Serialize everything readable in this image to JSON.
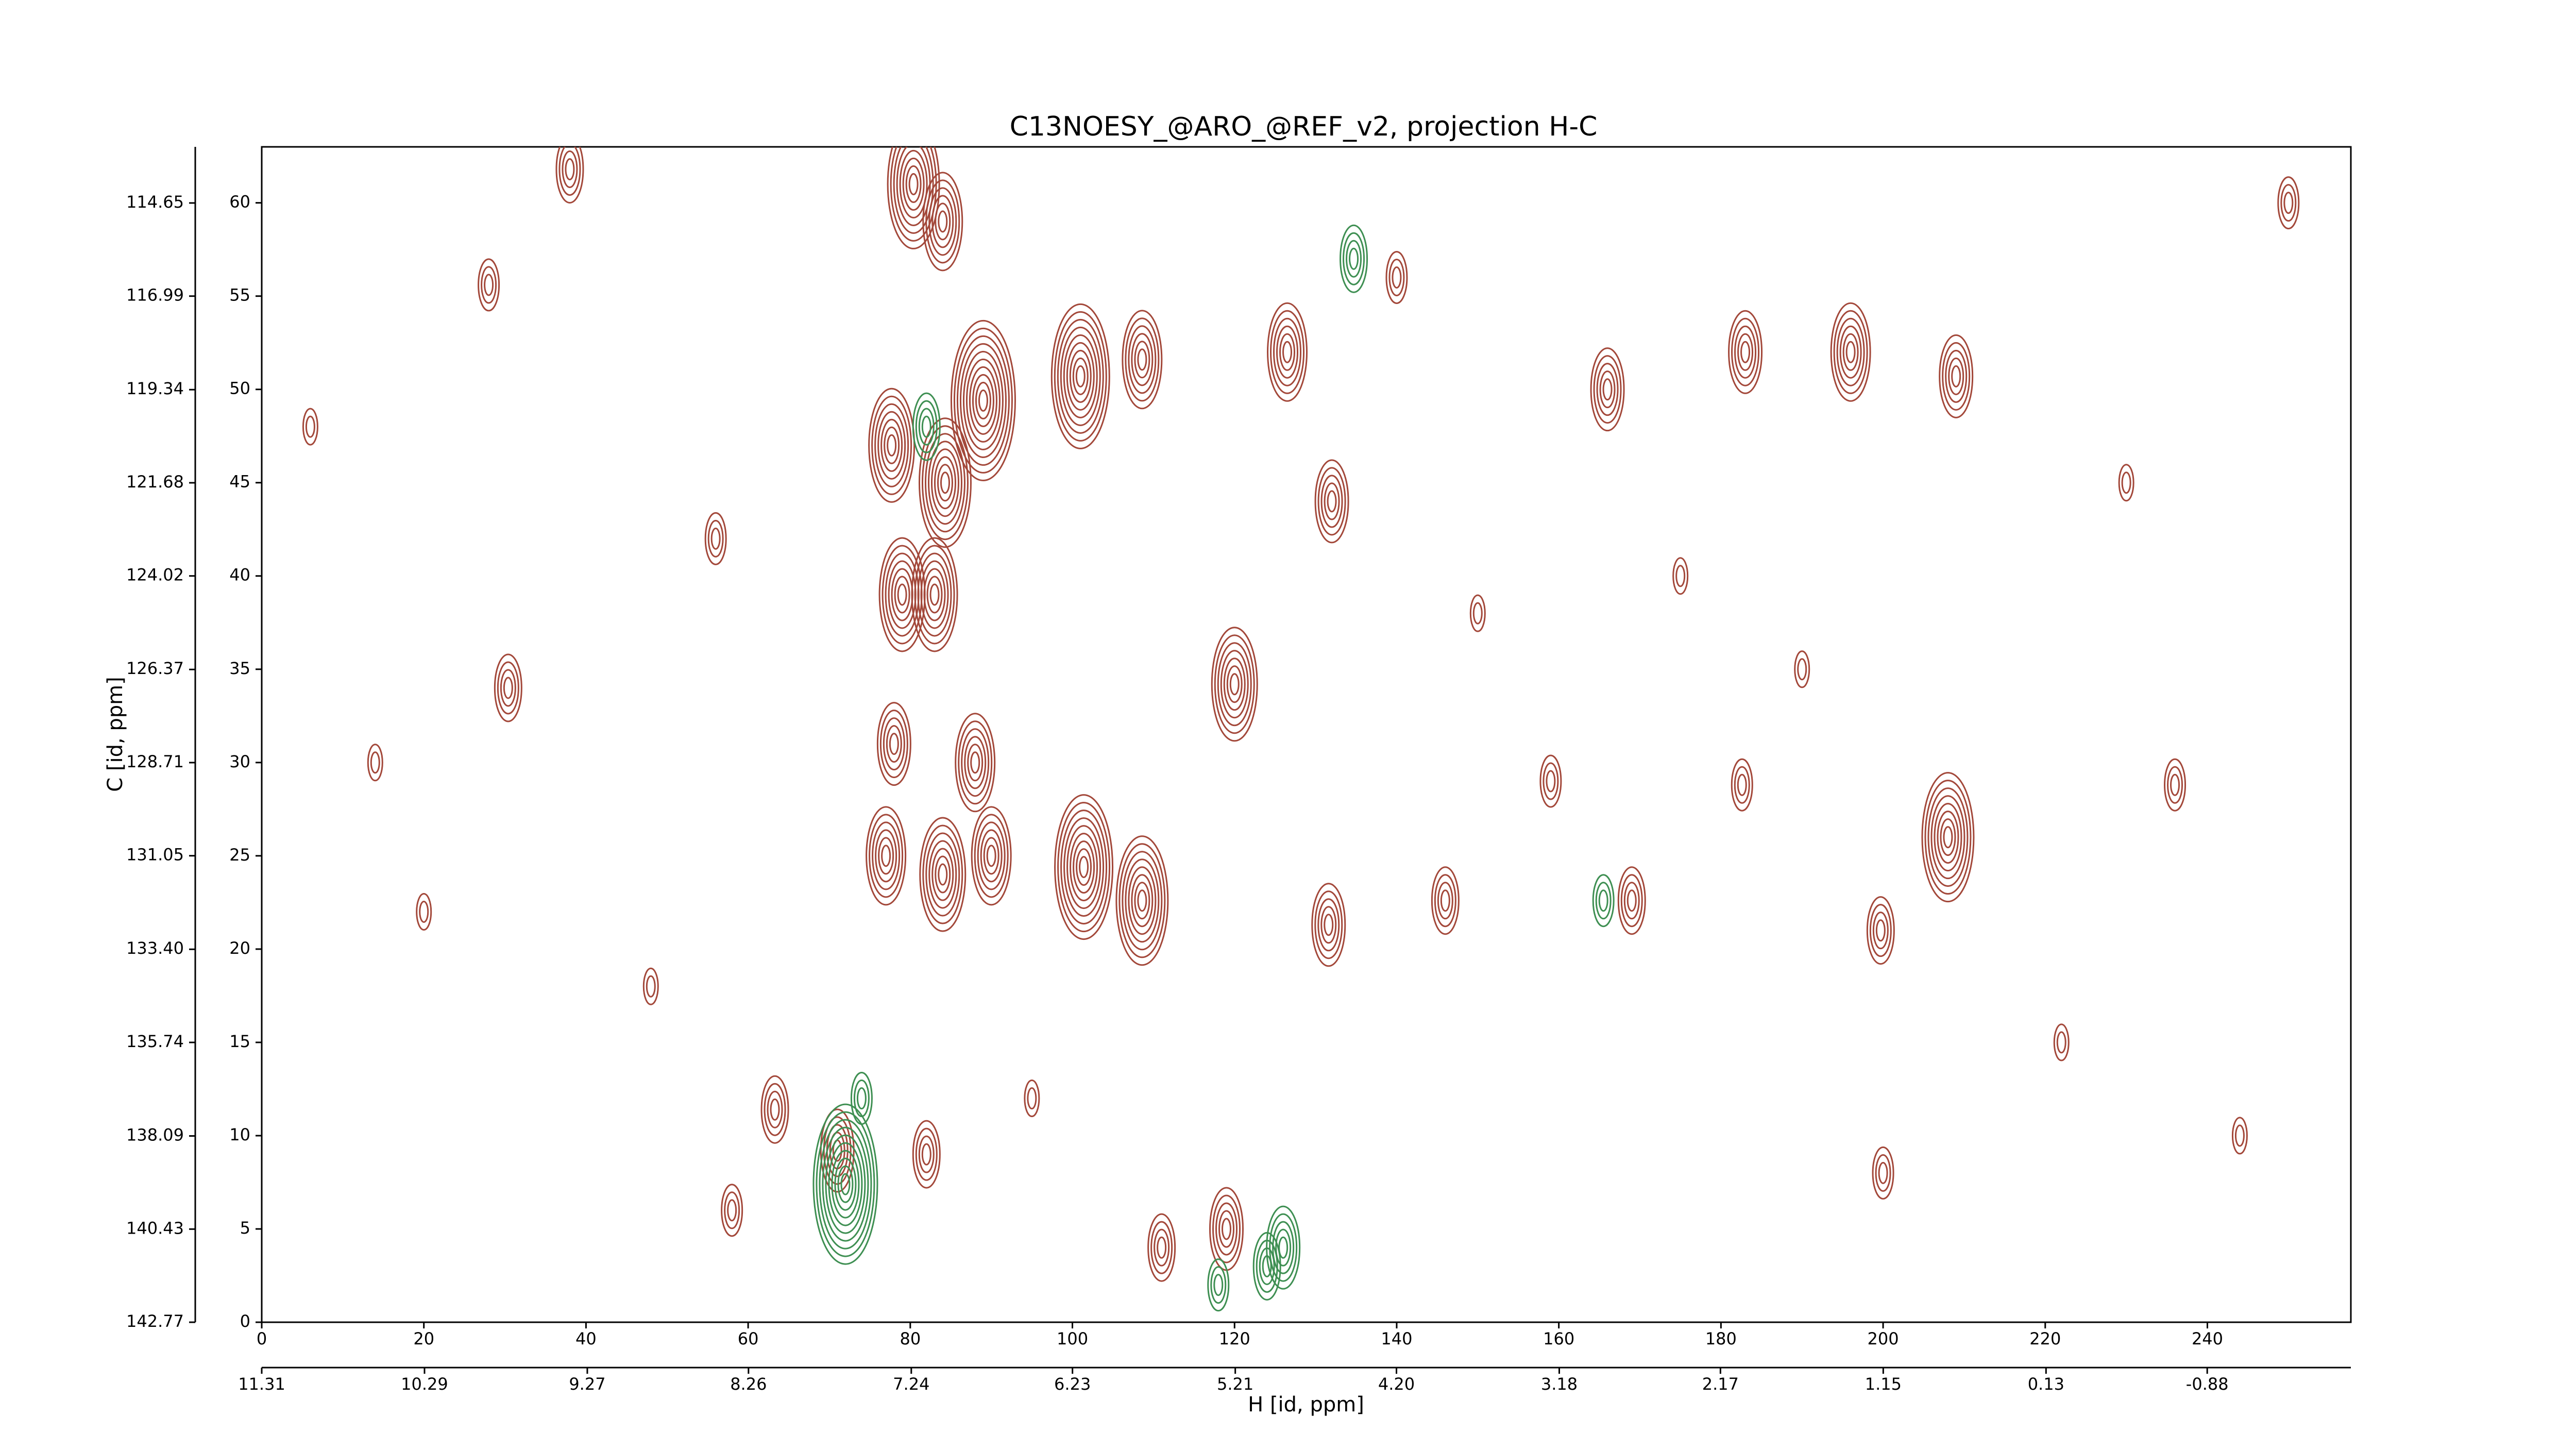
{
  "chart_data": {
    "type": "contour",
    "title": "C13NOESY_@ARO_@REF_v2, projection H-C",
    "xlabel": "H [id, ppm]",
    "ylabel": "C [id, ppm]",
    "xlim": [
      0,
      257.7
    ],
    "xticks": [
      0,
      20,
      40,
      60,
      80,
      100,
      120,
      140,
      160,
      180,
      200,
      220,
      240
    ],
    "ylim": [
      0,
      63
    ],
    "yticks": [
      0,
      5,
      10,
      15,
      20,
      25,
      30,
      35,
      40,
      45,
      50,
      55,
      60
    ],
    "x2lim": [
      11.31,
      -1.78
    ],
    "x2ticks": [
      11.31,
      10.29,
      9.27,
      8.26,
      7.24,
      6.23,
      5.21,
      {
        "value": 4.2,
        "label": "4.20"
      },
      3.18,
      2.17,
      1.15,
      0.13,
      -0.88
    ],
    "y2lim": [
      142.77,
      113.24
    ],
    "y2ticks": [
      142.77,
      140.43,
      138.09,
      135.74,
      {
        "value": 133.4,
        "label": "133.40"
      },
      131.05,
      128.71,
      126.37,
      124.02,
      121.68,
      119.34,
      116.99,
      114.65
    ],
    "series": [
      {
        "color": "#a3483a",
        "x": [
          80.4,
          84,
          77.7,
          89,
          84.3,
          79,
          83,
          101,
          108.6,
          120,
          101.4,
          108.6,
          77,
          84,
          90,
          78,
          88,
          71,
          63.3,
          82,
          126.5,
          132,
          131.6,
          146,
          166,
          169,
          183,
          196,
          208,
          199.7,
          209,
          30.4,
          28,
          38,
          56,
          182.6,
          159,
          236,
          250,
          119,
          111,
          14,
          48,
          58,
          95,
          150,
          175,
          222,
          230,
          200,
          244,
          6,
          20,
          140,
          190
        ],
        "y": [
          61,
          59,
          47,
          49.4,
          45,
          39,
          39,
          50.7,
          51.6,
          34.2,
          24.4,
          22.6,
          25,
          24,
          25,
          31,
          30,
          9.2,
          11.4,
          9,
          52,
          44,
          21.3,
          22.6,
          50,
          22.6,
          52,
          52,
          26,
          21,
          50.7,
          34,
          55.6,
          61.8,
          42,
          28.8,
          29,
          28.8,
          60,
          5,
          4,
          30,
          18,
          6,
          12,
          38,
          40,
          15,
          45,
          8,
          10,
          48,
          22,
          56,
          35
        ],
        "levels": [
          8,
          6,
          7,
          10,
          8,
          7,
          7,
          9,
          6,
          7,
          9,
          8,
          6,
          7,
          6,
          5,
          6,
          5,
          4,
          4,
          6,
          5,
          5,
          4,
          5,
          4,
          5,
          6,
          8,
          4,
          5,
          4,
          3,
          4,
          3,
          3,
          3,
          3,
          3,
          5,
          4,
          2,
          2,
          3,
          2,
          2,
          2,
          2,
          2,
          3,
          2,
          2,
          2,
          3,
          2
        ]
      },
      {
        "color": "#3e8f52",
        "x": [
          134.7,
          165.5,
          72,
          82,
          126,
          118,
          74,
          124
        ],
        "y": [
          57,
          22.6,
          7.4,
          48,
          4,
          2,
          12,
          3
        ],
        "levels": [
          4,
          3,
          10,
          4,
          5,
          3,
          3,
          4
        ]
      }
    ]
  }
}
